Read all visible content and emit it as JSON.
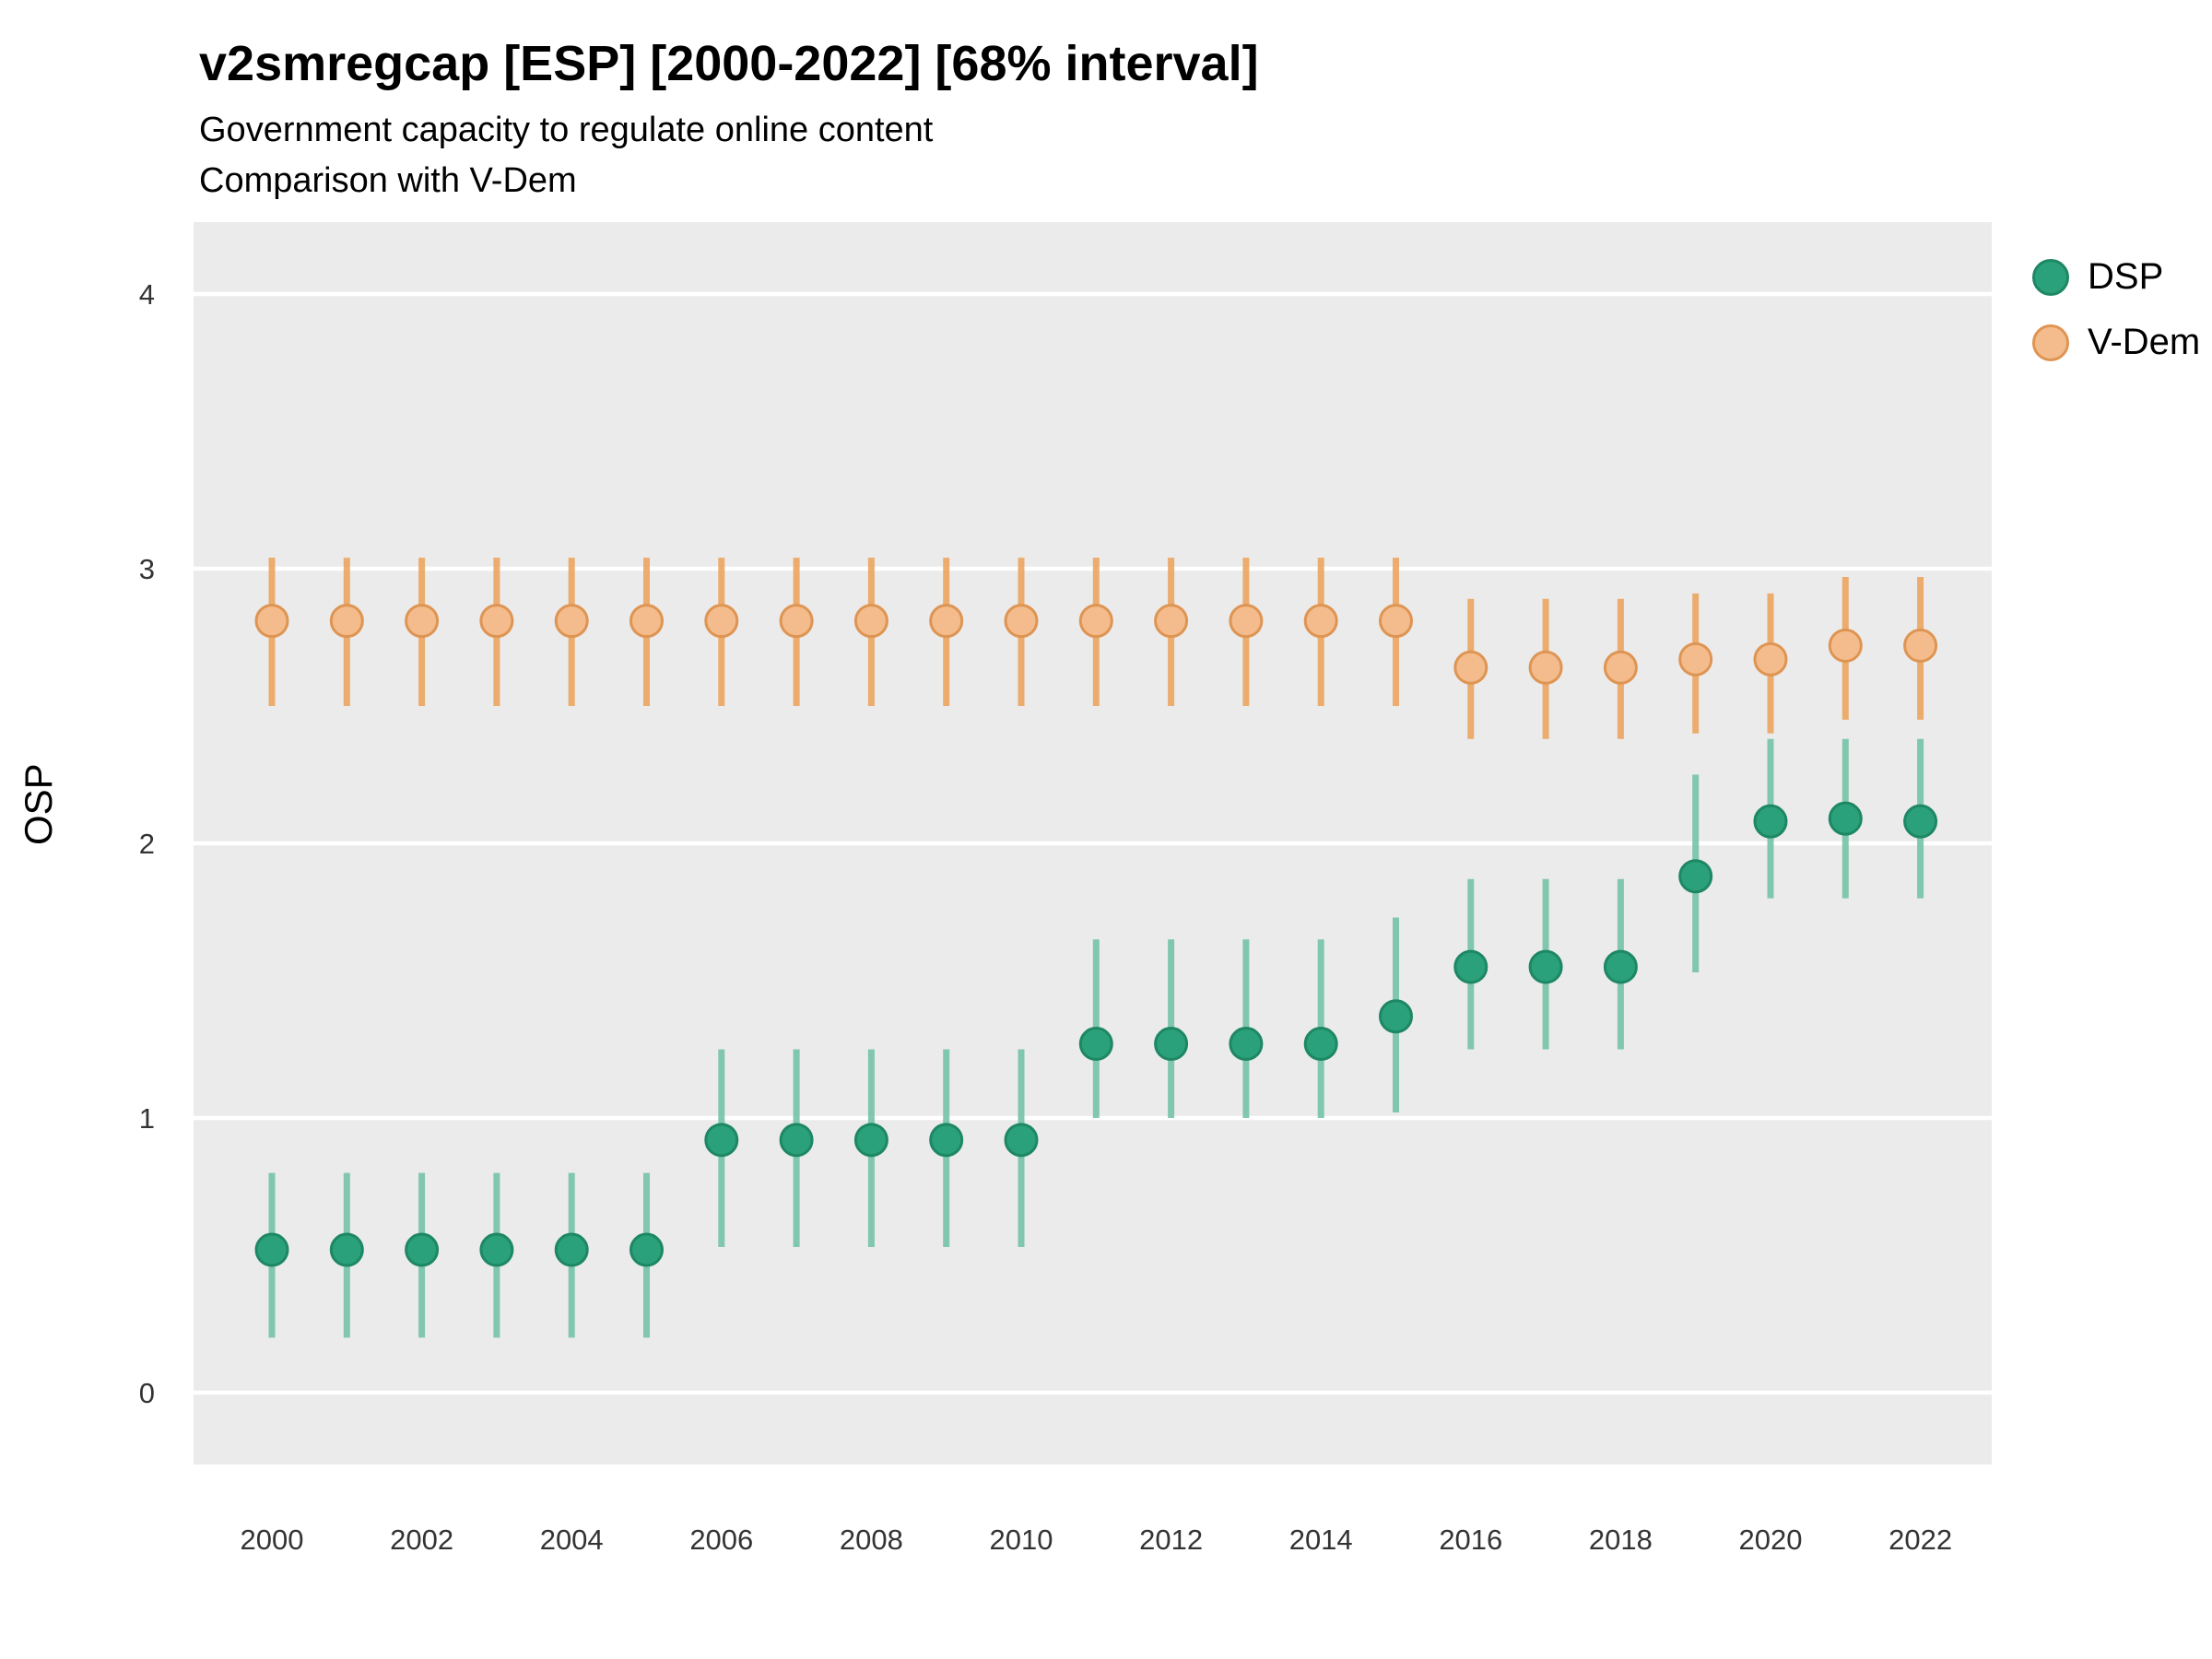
{
  "header": {
    "title": "v2smregcap [ESP] [2000-2022] [68% interval]",
    "subtitle1": "Government capacity to regulate online content",
    "subtitle2": "Comparison with V-Dem"
  },
  "legend": {
    "items": [
      {
        "label": "DSP"
      },
      {
        "label": "V-Dem"
      }
    ]
  },
  "chart_data": {
    "type": "scatter",
    "title": "v2smregcap [ESP] [2000-2022] [68% interval]",
    "subtitle": "Government capacity to regulate online content",
    "subtitle2": "Comparison with V-Dem",
    "interval": "68% interval",
    "xlabel": "",
    "ylabel": "OSP",
    "ylim": [
      -0.26,
      4.26
    ],
    "y_ticks": [
      0,
      1,
      2,
      3,
      4
    ],
    "x": [
      2000,
      2001,
      2002,
      2003,
      2004,
      2005,
      2006,
      2007,
      2008,
      2009,
      2010,
      2011,
      2012,
      2013,
      2014,
      2015,
      2016,
      2017,
      2018,
      2019,
      2020,
      2021,
      2022
    ],
    "x_tick_labels": [
      2000,
      2002,
      2004,
      2006,
      2008,
      2010,
      2012,
      2014,
      2016,
      2018,
      2020,
      2022
    ],
    "grid": true,
    "legend_position": "right",
    "panel_bg": "#EBEBEB",
    "grid_color": "#FFFFFF",
    "series": [
      {
        "name": "DSP",
        "color": "#2AA07B",
        "stroke": "#1E8763",
        "interval_color": "#74C3A6",
        "values": [
          0.52,
          0.52,
          0.52,
          0.52,
          0.52,
          0.52,
          0.92,
          0.92,
          0.92,
          0.92,
          0.92,
          1.27,
          1.27,
          1.27,
          1.27,
          1.37,
          1.55,
          1.55,
          1.55,
          1.88,
          2.08,
          2.09,
          2.08
        ],
        "lo": [
          0.2,
          0.2,
          0.2,
          0.2,
          0.2,
          0.2,
          0.53,
          0.53,
          0.53,
          0.53,
          0.53,
          1.0,
          1.0,
          1.0,
          1.0,
          1.02,
          1.25,
          1.25,
          1.25,
          1.53,
          1.8,
          1.8,
          1.8
        ],
        "hi": [
          0.8,
          0.8,
          0.8,
          0.8,
          0.8,
          0.8,
          1.25,
          1.25,
          1.25,
          1.25,
          1.25,
          1.65,
          1.65,
          1.65,
          1.65,
          1.73,
          1.87,
          1.87,
          1.87,
          2.25,
          2.38,
          2.38,
          2.38
        ]
      },
      {
        "name": "V-Dem",
        "color": "#F4BC8C",
        "stroke": "#DE9553",
        "interval_color": "#EBA55F",
        "values": [
          2.81,
          2.81,
          2.81,
          2.81,
          2.81,
          2.81,
          2.81,
          2.81,
          2.81,
          2.81,
          2.81,
          2.81,
          2.81,
          2.81,
          2.81,
          2.81,
          2.64,
          2.64,
          2.64,
          2.67,
          2.67,
          2.72,
          2.72
        ],
        "lo": [
          2.5,
          2.5,
          2.5,
          2.5,
          2.5,
          2.5,
          2.5,
          2.5,
          2.5,
          2.5,
          2.5,
          2.5,
          2.5,
          2.5,
          2.5,
          2.5,
          2.38,
          2.38,
          2.38,
          2.4,
          2.4,
          2.45,
          2.45
        ],
        "hi": [
          3.04,
          3.04,
          3.04,
          3.04,
          3.04,
          3.04,
          3.04,
          3.04,
          3.04,
          3.04,
          3.04,
          3.04,
          3.04,
          3.04,
          3.04,
          3.04,
          2.89,
          2.89,
          2.89,
          2.91,
          2.91,
          2.97,
          2.97
        ]
      }
    ]
  }
}
